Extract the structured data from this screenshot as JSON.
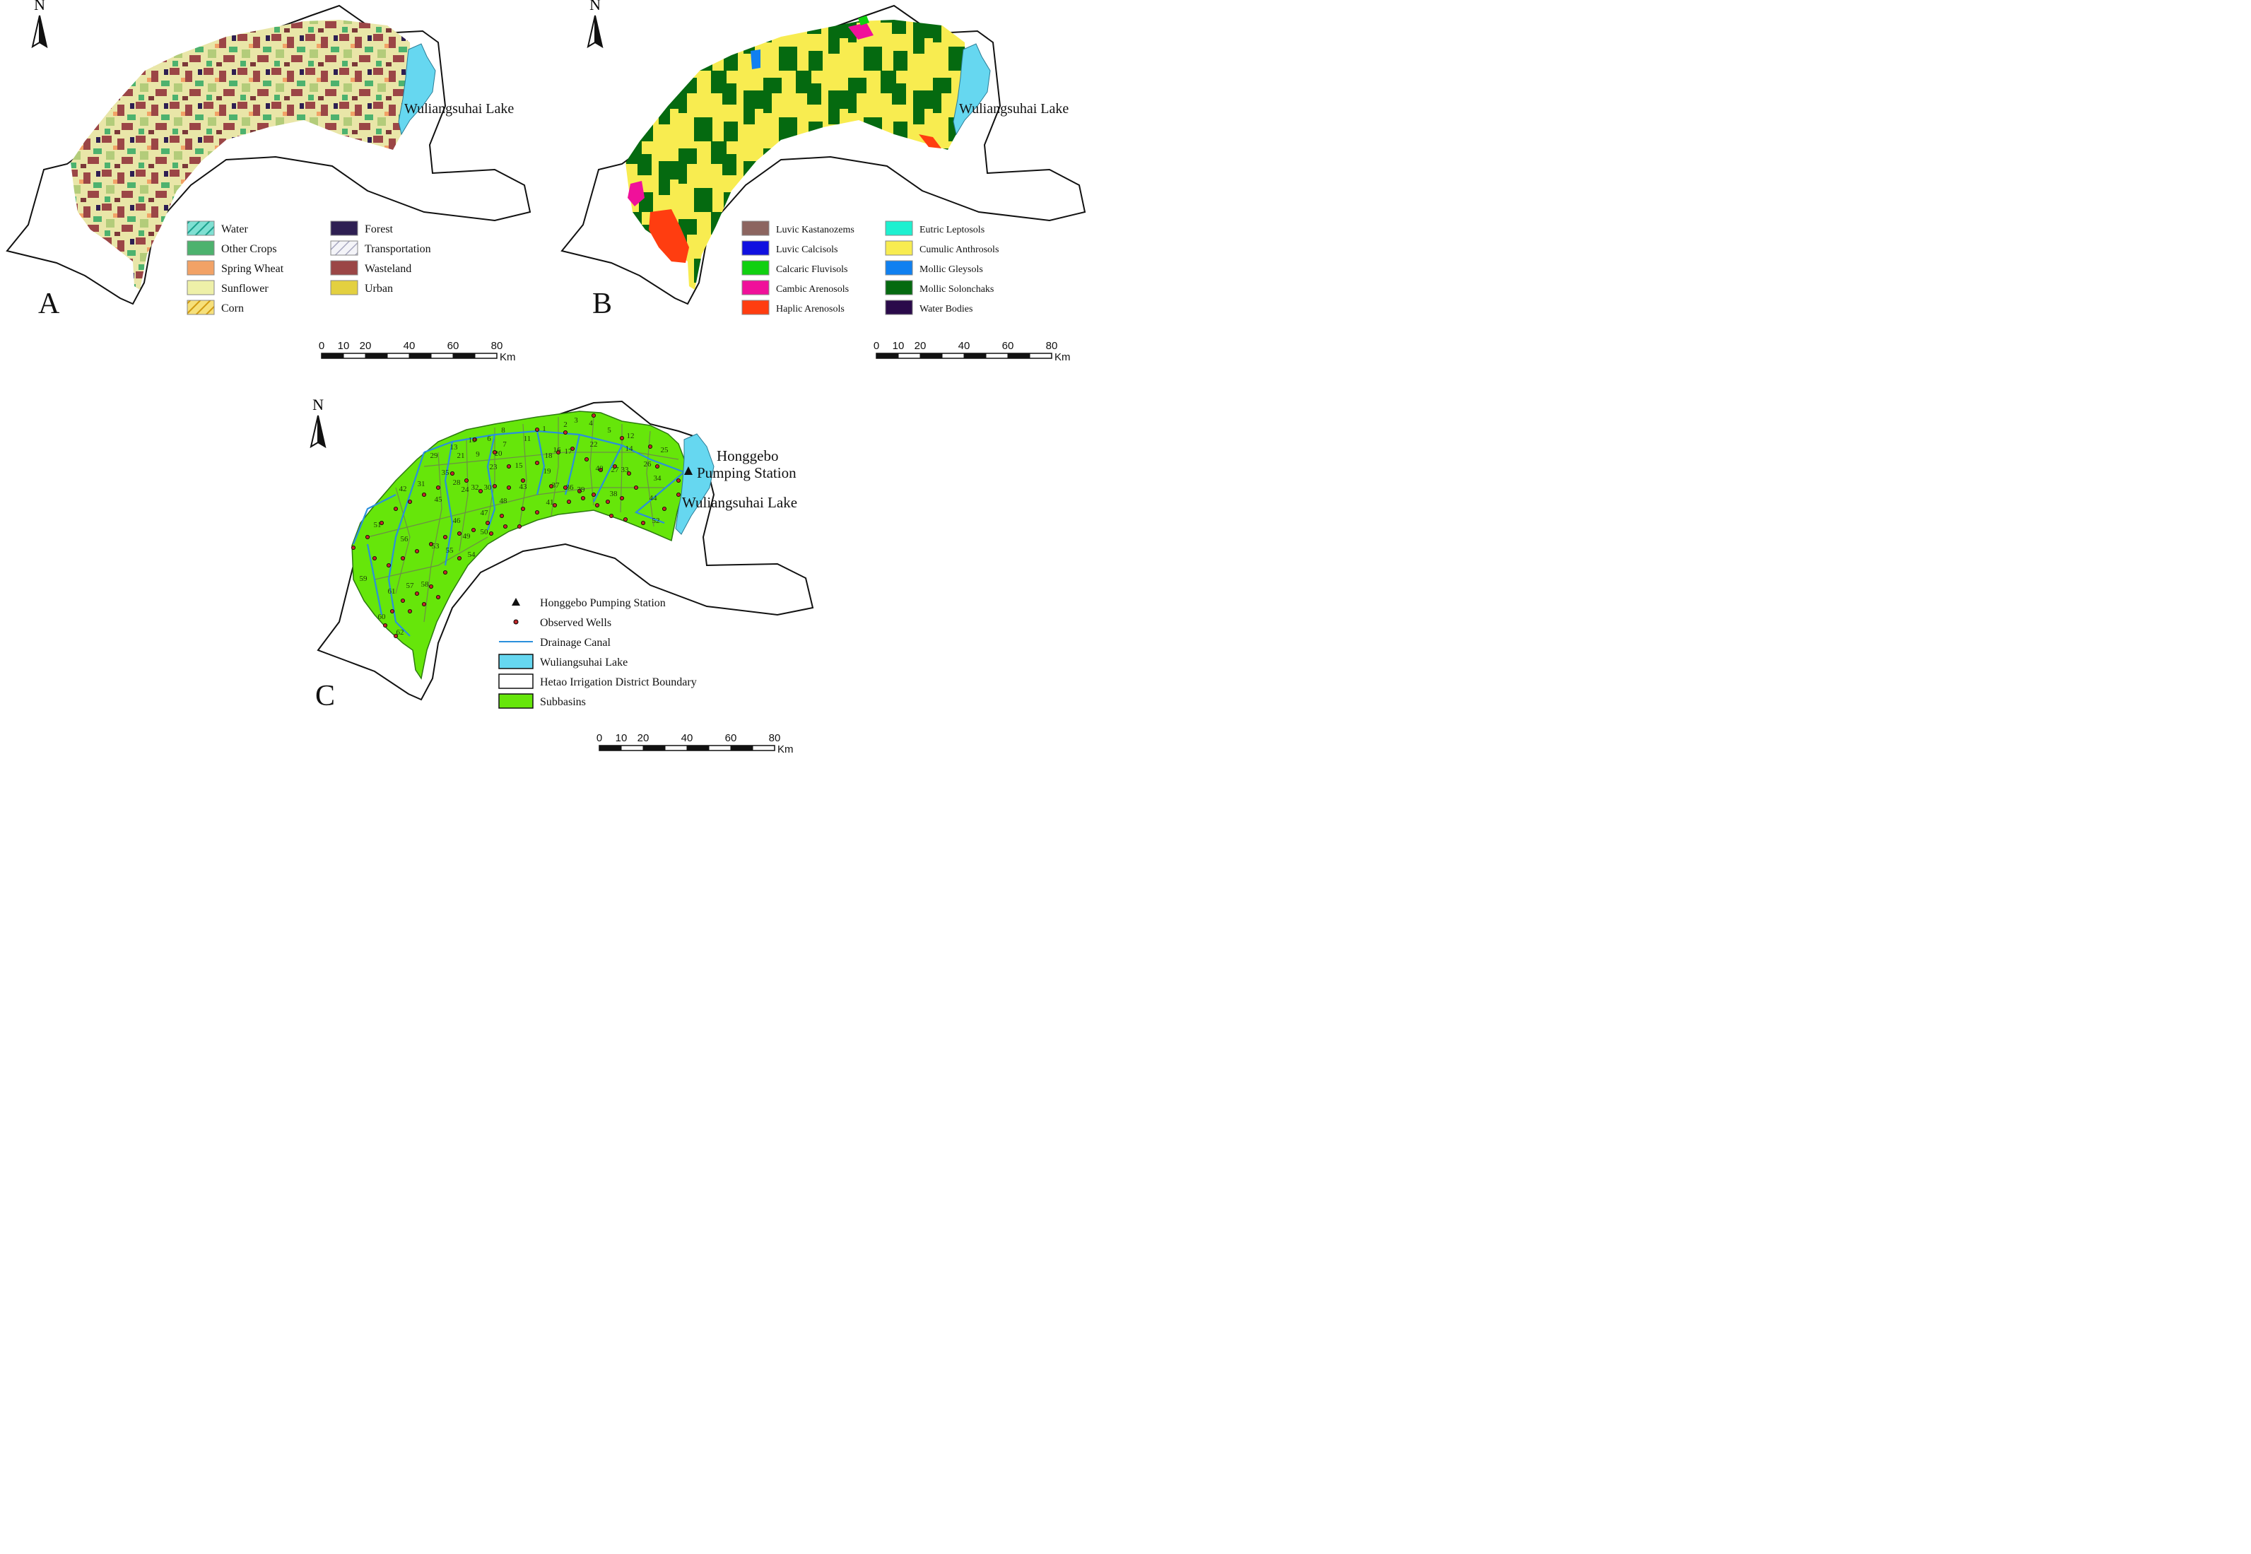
{
  "panels": {
    "a": {
      "label": "A",
      "lake_label": "Wuliangsuhai Lake",
      "legend": [
        {
          "label": "Water",
          "color": "#5fd3c4",
          "pattern": "hatch-teal"
        },
        {
          "label": "Other Crops",
          "color": "#4db26e"
        },
        {
          "label": "Spring Wheat",
          "color": "#f2a266"
        },
        {
          "label": "Sunflower",
          "color": "#eef0a8"
        },
        {
          "label": "Corn",
          "color": "#f0d060",
          "pattern": "hatch-gold"
        },
        {
          "label": "Forest",
          "color": "#2e1f52"
        },
        {
          "label": "Transportation",
          "color": "#e8e8f2",
          "pattern": "hatch-grey"
        },
        {
          "label": "Wasteland",
          "color": "#9b4646"
        },
        {
          "label": "Urban",
          "color": "#e3d040"
        }
      ]
    },
    "b": {
      "label": "B",
      "lake_label": "Wuliangsuhai Lake",
      "legend": [
        {
          "label": "Luvic Kastanozems",
          "color": "#8c6560"
        },
        {
          "label": "Luvic Calcisols",
          "color": "#1010e0"
        },
        {
          "label": "Calcaric Fluvisols",
          "color": "#10d010"
        },
        {
          "label": "Cambic Arenosols",
          "color": "#f0109a"
        },
        {
          "label": "Haplic Arenosols",
          "color": "#ff3d10"
        },
        {
          "label": "Eutric Leptosols",
          "color": "#1ef0d0"
        },
        {
          "label": "Cumulic Anthrosols",
          "color": "#f8ec50"
        },
        {
          "label": "Mollic Gleysols",
          "color": "#1080f0"
        },
        {
          "label": "Mollic Solonchaks",
          "color": "#056a10"
        },
        {
          "label": "Water Bodies",
          "color": "#2a0a4a"
        }
      ]
    },
    "c": {
      "label": "C",
      "station_label_line1": "Honggebo",
      "station_label_line2": "Pumping Station",
      "lake_label": "Wuliangsuhai Lake",
      "legend": [
        {
          "label": "Honggebo Pumping Station",
          "symbol": "triangle"
        },
        {
          "label": "Observed Wells",
          "symbol": "dot"
        },
        {
          "label": "Drainage Canal",
          "symbol": "line",
          "color": "#2a8fdc"
        },
        {
          "label": "Wuliangsuhai Lake",
          "symbol": "box",
          "color": "#66d7f0"
        },
        {
          "label": "Hetao Irrigation District Boundary",
          "symbol": "box",
          "color": "#ffffff"
        },
        {
          "label": "Subbasins",
          "symbol": "box",
          "color": "#66e60a"
        }
      ],
      "subbasin_numbers": [
        "1",
        "2",
        "3",
        "4",
        "5",
        "6",
        "7",
        "8",
        "9",
        "10",
        "11",
        "12",
        "13",
        "14",
        "15",
        "16",
        "17",
        "18",
        "19",
        "20",
        "21",
        "22",
        "23",
        "24",
        "25",
        "26",
        "27",
        "28",
        "29",
        "30",
        "31",
        "32",
        "33",
        "34",
        "35",
        "36",
        "37",
        "38",
        "39",
        "40",
        "41",
        "42",
        "43",
        "44",
        "45",
        "46",
        "47",
        "48",
        "49",
        "50",
        "51",
        "52",
        "53",
        "54",
        "55",
        "56",
        "57",
        "58",
        "59",
        "60",
        "61",
        "62"
      ]
    }
  },
  "north_label": "N",
  "scale_bar": {
    "ticks": [
      "0",
      "10",
      "20",
      "40",
      "60",
      "80"
    ],
    "unit": "Km"
  },
  "colors": {
    "lake": "#66d7f0",
    "subbasin": "#66e60a",
    "canal": "#2a8fdc",
    "well": "#c0282a",
    "boundary": "#111111"
  }
}
